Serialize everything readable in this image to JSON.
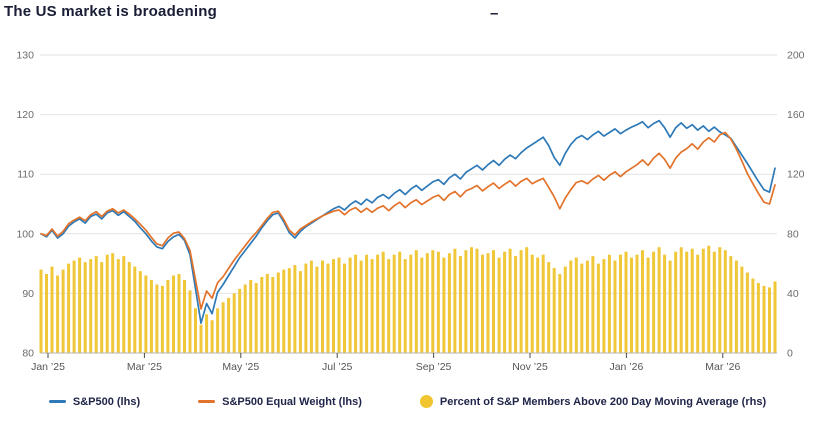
{
  "header": {
    "title": "The US market is broadening",
    "dash": "–"
  },
  "theme": {
    "background": "#ffffff",
    "title_color": "#191d35",
    "legend_text_color": "#20254a",
    "axis_label_color": "#6b6b6b",
    "x_label_color": "#555555",
    "grid_color": "#e2e2e2",
    "axis_line_color": "#b5b5b5",
    "tick_color": "#4a4a4a",
    "sp500_blue": "#2e79b7",
    "equal_weight_orange": "#e2732b",
    "percent_yellow": "#f0c52f"
  },
  "chart_data": {
    "type": "combo",
    "title": "The US market is broadening",
    "grid": true,
    "legend_position": "bottom",
    "left_axis": {
      "ticks": [
        80,
        90,
        100,
        110,
        120,
        130
      ],
      "range": [
        80,
        130
      ]
    },
    "right_axis": {
      "ticks": [
        0,
        40,
        80,
        120,
        160,
        200
      ],
      "range": [
        0,
        200
      ]
    },
    "x_axis": {
      "tick_labels": [
        "Jan ’25",
        "Mar ’25",
        "May ’25",
        "Jul ’25",
        "Sep ’25",
        "Nov ’25",
        "Jan ’26",
        "Mar ’26"
      ],
      "tick_month_positions": [
        0,
        2,
        4,
        6,
        8,
        10,
        12,
        14
      ],
      "months_total": 15,
      "start": "Jan 2025",
      "end": "Mar 2026"
    },
    "series": [
      {
        "name": "S&P500 (lhs)",
        "type": "line",
        "axis": "left",
        "color": "#2e79b7",
        "values": [
          100.0,
          99.5,
          100.6,
          99.3,
          100.0,
          101.3,
          102.0,
          102.5,
          101.8,
          102.9,
          103.3,
          102.5,
          103.5,
          103.9,
          103.1,
          103.7,
          102.9,
          102.1,
          101.0,
          100.0,
          98.8,
          97.8,
          97.5,
          98.7,
          99.5,
          99.9,
          98.9,
          96.5,
          90.8,
          85.0,
          88.3,
          86.6,
          90.2,
          91.5,
          93.0,
          94.5,
          96.0,
          97.2,
          98.4,
          99.6,
          101.0,
          102.2,
          103.2,
          103.5,
          102.0,
          100.2,
          99.3,
          100.4,
          101.2,
          101.8,
          102.4,
          103.0,
          103.6,
          104.2,
          104.6,
          104.0,
          104.9,
          105.5,
          104.9,
          105.8,
          105.2,
          106.1,
          106.6,
          105.9,
          106.8,
          107.4,
          106.6,
          107.5,
          108.1,
          107.3,
          108.0,
          108.7,
          109.1,
          108.3,
          109.4,
          110.0,
          109.2,
          110.3,
          110.9,
          111.5,
          110.7,
          111.6,
          112.3,
          111.5,
          112.5,
          113.2,
          112.6,
          113.6,
          114.4,
          115.0,
          115.6,
          116.2,
          114.8,
          112.8,
          111.5,
          113.5,
          115.0,
          116.0,
          116.5,
          115.8,
          116.6,
          117.2,
          116.4,
          117.0,
          117.6,
          116.8,
          117.4,
          117.9,
          118.3,
          118.8,
          117.8,
          118.5,
          119.0,
          117.8,
          116.2,
          117.8,
          118.6,
          117.7,
          118.3,
          117.4,
          118.1,
          117.2,
          117.9,
          117.1,
          116.6,
          116.0,
          114.6,
          113.2,
          111.8,
          110.3,
          108.8,
          107.4,
          107.0,
          111.0
        ]
      },
      {
        "name": "S&P500 Equal Weight (lhs)",
        "type": "line",
        "axis": "left",
        "color": "#e2732b",
        "values": [
          100.0,
          99.7,
          100.8,
          99.6,
          100.4,
          101.7,
          102.3,
          102.8,
          102.2,
          103.2,
          103.7,
          102.9,
          103.8,
          104.2,
          103.5,
          104.0,
          103.3,
          102.5,
          101.6,
          100.6,
          99.4,
          98.3,
          98.0,
          99.3,
          100.1,
          100.3,
          99.2,
          97.2,
          92.3,
          87.4,
          90.4,
          89.2,
          91.8,
          92.8,
          94.2,
          95.6,
          96.8,
          98.0,
          99.2,
          100.2,
          101.4,
          102.6,
          103.6,
          103.8,
          102.4,
          100.6,
          99.8,
          100.8,
          101.4,
          102.0,
          102.5,
          103.0,
          103.4,
          103.8,
          104.0,
          103.2,
          104.0,
          104.4,
          103.6,
          104.3,
          103.6,
          104.3,
          104.7,
          103.9,
          104.7,
          105.3,
          104.4,
          105.2,
          105.7,
          104.9,
          105.5,
          106.1,
          106.5,
          105.6,
          106.6,
          107.1,
          106.2,
          107.2,
          107.6,
          108.1,
          107.2,
          107.9,
          108.5,
          107.6,
          108.3,
          108.9,
          108.0,
          108.8,
          109.3,
          108.4,
          108.9,
          109.3,
          107.8,
          106.2,
          104.2,
          106.0,
          107.4,
          108.6,
          108.9,
          108.4,
          109.2,
          109.8,
          109.0,
          109.8,
          110.4,
          109.6,
          110.4,
          111.0,
          111.6,
          112.4,
          111.5,
          112.7,
          113.5,
          112.5,
          111.0,
          112.7,
          113.7,
          114.3,
          115.1,
          114.2,
          115.4,
          116.1,
          115.4,
          116.6,
          117.0,
          115.9,
          114.2,
          112.2,
          110.1,
          108.4,
          106.8,
          105.3,
          105.0,
          108.2
        ]
      },
      {
        "name": "Percent of S&P Members Above 200 Day Moving Average (rhs)",
        "type": "bar",
        "axis": "right",
        "color": "#f0c52f",
        "values": [
          56,
          53,
          58,
          52,
          56,
          60,
          62,
          64,
          61,
          63,
          65,
          61,
          66,
          67,
          63,
          65,
          61,
          58,
          55,
          52,
          49,
          46,
          45,
          49,
          52,
          53,
          49,
          42,
          30,
          19,
          26,
          22,
          30,
          34,
          37,
          40,
          43,
          46,
          49,
          47,
          51,
          53,
          51,
          54,
          56,
          57,
          59,
          55,
          60,
          62,
          58,
          62,
          60,
          63,
          64,
          60,
          64,
          66,
          62,
          66,
          63,
          66,
          68,
          63,
          66,
          68,
          63,
          66,
          69,
          64,
          67,
          69,
          68,
          64,
          67,
          70,
          65,
          69,
          71,
          70,
          66,
          67,
          69,
          64,
          68,
          70,
          65,
          69,
          71,
          66,
          64,
          66,
          61,
          57,
          53,
          58,
          62,
          64,
          60,
          62,
          65,
          60,
          63,
          66,
          62,
          66,
          68,
          64,
          66,
          69,
          64,
          68,
          71,
          66,
          62,
          68,
          71,
          68,
          70,
          66,
          70,
          72,
          68,
          71,
          69,
          65,
          62,
          58,
          54,
          50,
          47,
          45,
          44,
          48
        ]
      }
    ]
  }
}
